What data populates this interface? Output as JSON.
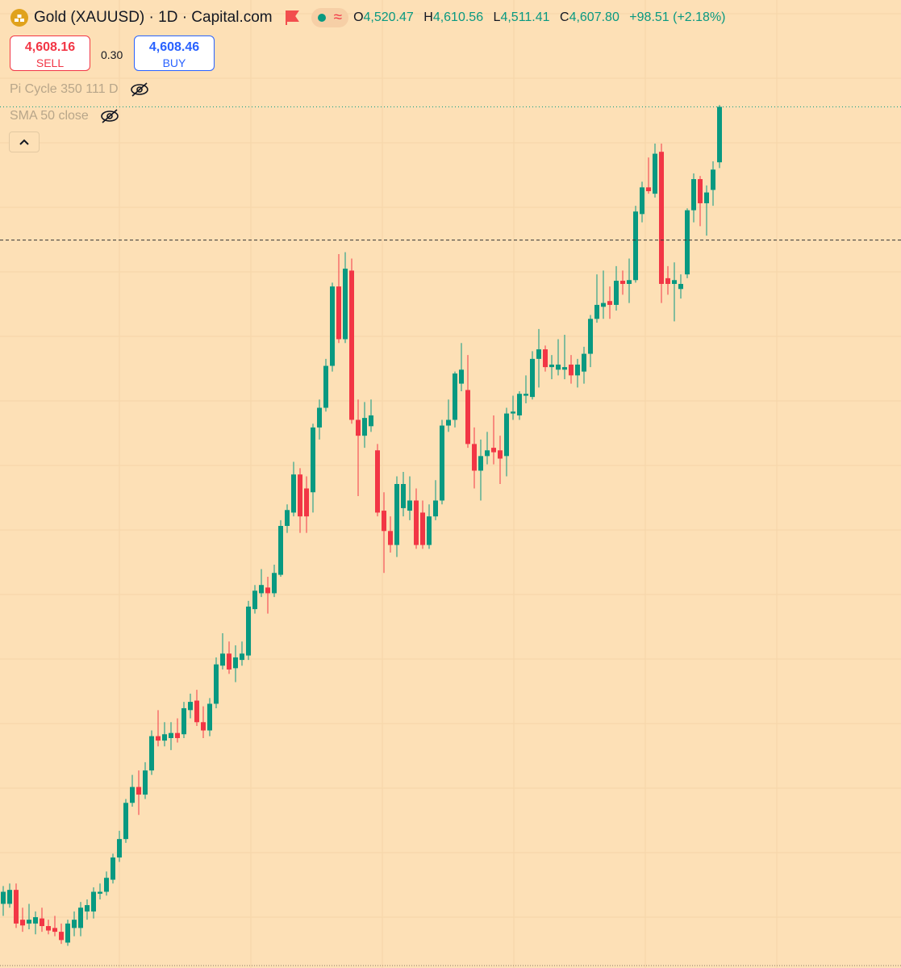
{
  "chart_data": {
    "type": "candlestick",
    "title": "Gold (XAUUSD) · 1D · Capital.com",
    "legend": [
      {
        "key": "O",
        "value": "4,520.47"
      },
      {
        "key": "H",
        "value": "4,610.56"
      },
      {
        "key": "L",
        "value": "4,511.41"
      },
      {
        "key": "C",
        "value": "4,607.80"
      }
    ],
    "change": "+98.51 (+2.18%)",
    "trade": {
      "sell_price": "4,608.16",
      "sell_label": "SELL",
      "spread": "0.30",
      "buy_price": "4,608.46",
      "buy_label": "BUY"
    },
    "indicators": [
      "Pi Cycle 350 111 D",
      "SMA 50 close"
    ],
    "up_color": "#089981",
    "down_color": "#f23645",
    "ylim": [
      3252,
      4776
    ],
    "horizontal_line": 4398,
    "open": [
      3353,
      3353,
      3375,
      3328,
      3322,
      3322,
      3330,
      3318,
      3315,
      3309,
      3292,
      3315,
      3315,
      3341,
      3341,
      3369,
      3372,
      3391,
      3426,
      3455,
      3512,
      3537,
      3525,
      3563,
      3617,
      3610,
      3614,
      3622,
      3620,
      3658,
      3673,
      3639,
      3626,
      3668,
      3728,
      3747,
      3724,
      3737,
      3744,
      3817,
      3842,
      3851,
      3842,
      3871,
      3948,
      3969,
      4029,
      4007,
      4001,
      4103,
      4134,
      4200,
      4325,
      4242,
      4350,
      4115,
      4090,
      4105,
      4067,
      3972,
      3940,
      3918,
      3976,
      3972,
      3988,
      3969,
      3918,
      3963,
      3988,
      4106,
      4115,
      4172,
      4162,
      4077,
      4035,
      4058,
      4071,
      4067,
      4058,
      4125,
      4122,
      4153,
      4151,
      4211,
      4226,
      4198,
      4194,
      4194,
      4202,
      4185,
      4191,
      4219,
      4274,
      4293,
      4302,
      4296,
      4334,
      4329,
      4335,
      4439,
      4481,
      4471,
      4537,
      4338,
      4329,
      4321,
      4344,
      4445,
      4494,
      4456,
      4477,
      4520.47
    ],
    "high": [
      3381,
      3385,
      3385,
      3347,
      3353,
      3341,
      3347,
      3328,
      3334,
      3322,
      3328,
      3341,
      3356,
      3360,
      3379,
      3385,
      3404,
      3432,
      3468,
      3518,
      3556,
      3563,
      3576,
      3626,
      3658,
      3639,
      3639,
      3645,
      3671,
      3684,
      3690,
      3664,
      3677,
      3741,
      3779,
      3766,
      3760,
      3766,
      3830,
      3855,
      3880,
      3868,
      3887,
      3957,
      3982,
      4049,
      4039,
      4026,
      4109,
      4147,
      4211,
      4331,
      4376,
      4379,
      4369,
      4147,
      4143,
      4147,
      4077,
      4001,
      3963,
      4026,
      4033,
      4026,
      4007,
      3988,
      3982,
      4020,
      4115,
      4147,
      4191,
      4236,
      4217,
      4103,
      4084,
      4096,
      4122,
      4090,
      4134,
      4153,
      4160,
      4185,
      4223,
      4258,
      4232,
      4217,
      4242,
      4249,
      4217,
      4211,
      4230,
      4280,
      4344,
      4350,
      4325,
      4357,
      4350,
      4369,
      4452,
      4490,
      4528,
      4550,
      4550,
      4357,
      4363,
      4344,
      4448,
      4503,
      4499,
      4484,
      4522,
      4610.56
    ],
    "low": [
      3334,
      3347,
      3315,
      3309,
      3313,
      3305,
      3309,
      3305,
      3302,
      3290,
      3287,
      3302,
      3302,
      3328,
      3330,
      3360,
      3366,
      3385,
      3419,
      3449,
      3506,
      3493,
      3518,
      3556,
      3601,
      3601,
      3595,
      3607,
      3614,
      3645,
      3633,
      3614,
      3617,
      3661,
      3722,
      3715,
      3702,
      3728,
      3737,
      3810,
      3836,
      3810,
      3836,
      3868,
      3937,
      3963,
      3937,
      3937,
      3969,
      4084,
      4128,
      4191,
      4236,
      4236,
      4109,
      3995,
      4071,
      4096,
      3963,
      3874,
      3906,
      3899,
      3963,
      3957,
      3912,
      3912,
      3912,
      3957,
      3982,
      4096,
      4103,
      4160,
      4071,
      4007,
      3988,
      4045,
      4045,
      4014,
      4026,
      4115,
      4115,
      4141,
      4147,
      4166,
      4191,
      4179,
      4185,
      4179,
      4172,
      4166,
      4172,
      4198,
      4268,
      4274,
      4274,
      4287,
      4312,
      4299,
      4331,
      4426,
      4471,
      4465,
      4299,
      4312,
      4270,
      4306,
      4338,
      4426,
      4420,
      4405,
      4452,
      4511.41
    ],
    "close": [
      3372,
      3375,
      3322,
      3319,
      3328,
      3332,
      3318,
      3311,
      3309,
      3296,
      3322,
      3328,
      3347,
      3351,
      3372,
      3372,
      3394,
      3426,
      3455,
      3512,
      3537,
      3525,
      3563,
      3617,
      3610,
      3620,
      3622,
      3614,
      3661,
      3671,
      3639,
      3626,
      3668,
      3730,
      3747,
      3722,
      3741,
      3747,
      3821,
      3846,
      3855,
      3842,
      3874,
      3948,
      3973,
      4029,
      3963,
      3963,
      4103,
      4134,
      4200,
      4325,
      4242,
      4353,
      4115,
      4090,
      4118,
      4122,
      3969,
      3940,
      3918,
      4014,
      4014,
      3988,
      3918,
      3918,
      3963,
      3988,
      4106,
      4115,
      4188,
      4194,
      4077,
      4035,
      4058,
      4067,
      4064,
      4054,
      4125,
      4128,
      4156,
      4156,
      4211,
      4226,
      4198,
      4202,
      4202,
      4198,
      4185,
      4202,
      4219,
      4274,
      4296,
      4299,
      4296,
      4334,
      4329,
      4335,
      4443,
      4481,
      4475,
      4534,
      4329,
      4329,
      4335,
      4329,
      4445,
      4494,
      4456,
      4473,
      4509,
      4607.8
    ]
  }
}
